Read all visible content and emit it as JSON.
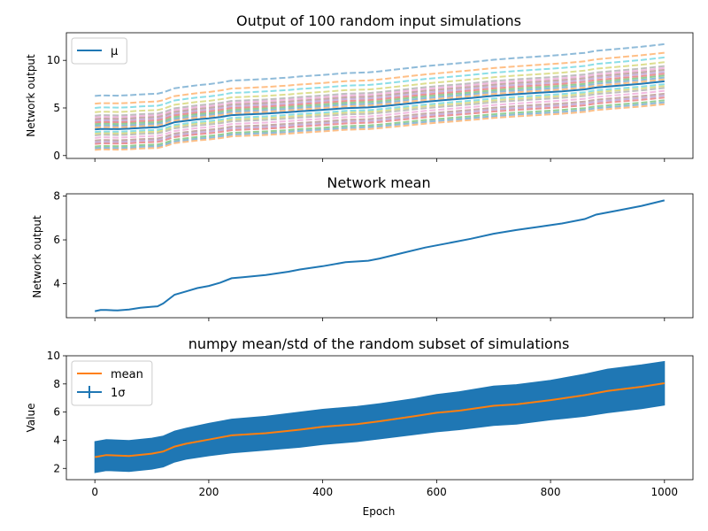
{
  "figure": {
    "background": "#ffffff"
  },
  "chart_data": [
    {
      "type": "line",
      "title": "Output of 100 random input simulations",
      "xlabel": "",
      "ylabel": "Network output",
      "xlim": [
        -50,
        1050
      ],
      "ylim": [
        -0.3,
        12.9
      ],
      "yticks": [
        0,
        5,
        10
      ],
      "xticks": [
        0,
        200,
        400,
        600,
        800,
        1000
      ],
      "show_xticklabels": false,
      "legend": {
        "position": "top-left",
        "entries": [
          {
            "label": "μ",
            "color": "#1f77b4",
            "style": "line"
          }
        ]
      },
      "mean_series": {
        "name": "μ",
        "color": "#1f77b4",
        "x": [
          0,
          10,
          20,
          40,
          60,
          80,
          100,
          110,
          120,
          140,
          160,
          180,
          200,
          220,
          240,
          260,
          300,
          340,
          360,
          400,
          440,
          480,
          500,
          540,
          580,
          620,
          660,
          700,
          740,
          780,
          820,
          860,
          880,
          920,
          960,
          1000
        ],
        "y": [
          2.75,
          2.8,
          2.8,
          2.78,
          2.82,
          2.9,
          2.95,
          2.97,
          3.1,
          3.5,
          3.65,
          3.8,
          3.9,
          4.05,
          4.25,
          4.3,
          4.4,
          4.55,
          4.65,
          4.8,
          4.98,
          5.05,
          5.15,
          5.4,
          5.65,
          5.85,
          6.05,
          6.28,
          6.45,
          6.6,
          6.75,
          6.95,
          7.15,
          7.35,
          7.55,
          7.8
        ]
      },
      "simulation_offsets": [
        -2.4,
        -2.2,
        -2.0,
        -1.7,
        -1.5,
        -1.3,
        -1.0,
        -0.7,
        -0.5,
        -0.3,
        0.2,
        0.4,
        0.6,
        0.8,
        1.0,
        1.2,
        1.4,
        1.6,
        2.0,
        2.5,
        3.0,
        3.9
      ],
      "simulation_colors": [
        "#ff7f0e",
        "#1f77b4",
        "#2ca02c",
        "#d62728",
        "#9467bd",
        "#8c564b",
        "#e377c2",
        "#7f7f7f",
        "#bcbd22",
        "#17becf"
      ],
      "simulation_style": "dashed"
    },
    {
      "type": "line",
      "title": "Network mean",
      "xlabel": "",
      "ylabel": "Network output",
      "xlim": [
        -50,
        1050
      ],
      "ylim": [
        2.45,
        8.1
      ],
      "yticks": [
        4,
        6,
        8
      ],
      "xticks": [
        0,
        200,
        400,
        600,
        800,
        1000
      ],
      "show_xticklabels": false,
      "series": [
        {
          "name": "mean",
          "color": "#1f77b4",
          "x": [
            0,
            10,
            20,
            40,
            60,
            80,
            100,
            110,
            120,
            140,
            160,
            180,
            200,
            220,
            240,
            260,
            300,
            340,
            360,
            400,
            440,
            480,
            500,
            540,
            580,
            620,
            660,
            700,
            740,
            780,
            820,
            860,
            880,
            920,
            960,
            1000
          ],
          "y": [
            2.75,
            2.8,
            2.8,
            2.78,
            2.82,
            2.9,
            2.95,
            2.97,
            3.1,
            3.5,
            3.65,
            3.8,
            3.9,
            4.05,
            4.25,
            4.3,
            4.4,
            4.55,
            4.65,
            4.8,
            4.98,
            5.05,
            5.15,
            5.4,
            5.65,
            5.85,
            6.05,
            6.28,
            6.45,
            6.6,
            6.75,
            6.95,
            7.15,
            7.35,
            7.55,
            7.8
          ]
        }
      ]
    },
    {
      "type": "area",
      "title": "numpy mean/std of the random subset of simulations",
      "xlabel": "Epoch",
      "ylabel": "Value",
      "xlim": [
        -50,
        1050
      ],
      "ylim": [
        1.2,
        10.0
      ],
      "yticks": [
        2,
        4,
        6,
        8,
        10
      ],
      "xticks": [
        0,
        200,
        400,
        600,
        800,
        1000
      ],
      "show_xticklabels": true,
      "legend": {
        "position": "top-left",
        "entries": [
          {
            "label": "mean",
            "color": "#ff7f0e",
            "style": "line"
          },
          {
            "label": "1σ",
            "color": "#1f77b4",
            "style": "errorbar"
          }
        ]
      },
      "mean_series": {
        "name": "mean",
        "color": "#ff7f0e",
        "x": [
          0,
          20,
          60,
          100,
          120,
          140,
          160,
          200,
          240,
          300,
          360,
          400,
          460,
          500,
          560,
          600,
          640,
          700,
          740,
          800,
          860,
          900,
          960,
          1000
        ],
        "y": [
          2.8,
          2.95,
          2.88,
          3.05,
          3.2,
          3.55,
          3.75,
          4.05,
          4.35,
          4.5,
          4.75,
          4.95,
          5.15,
          5.35,
          5.7,
          5.95,
          6.1,
          6.45,
          6.55,
          6.85,
          7.2,
          7.5,
          7.8,
          8.05
        ]
      },
      "band_series": {
        "name": "1σ",
        "color": "#1f77b4",
        "x": [
          0,
          20,
          60,
          100,
          120,
          140,
          160,
          200,
          240,
          300,
          360,
          400,
          460,
          500,
          560,
          600,
          640,
          700,
          740,
          800,
          860,
          900,
          960,
          1000
        ],
        "lower": [
          1.7,
          1.85,
          1.78,
          1.95,
          2.1,
          2.45,
          2.65,
          2.9,
          3.1,
          3.3,
          3.5,
          3.7,
          3.9,
          4.1,
          4.4,
          4.6,
          4.75,
          5.05,
          5.15,
          5.45,
          5.7,
          5.95,
          6.25,
          6.5
        ],
        "upper": [
          3.9,
          4.05,
          3.98,
          4.15,
          4.3,
          4.65,
          4.85,
          5.2,
          5.5,
          5.7,
          6.0,
          6.2,
          6.4,
          6.6,
          6.95,
          7.25,
          7.45,
          7.85,
          7.95,
          8.25,
          8.7,
          9.05,
          9.35,
          9.6
        ]
      }
    }
  ]
}
